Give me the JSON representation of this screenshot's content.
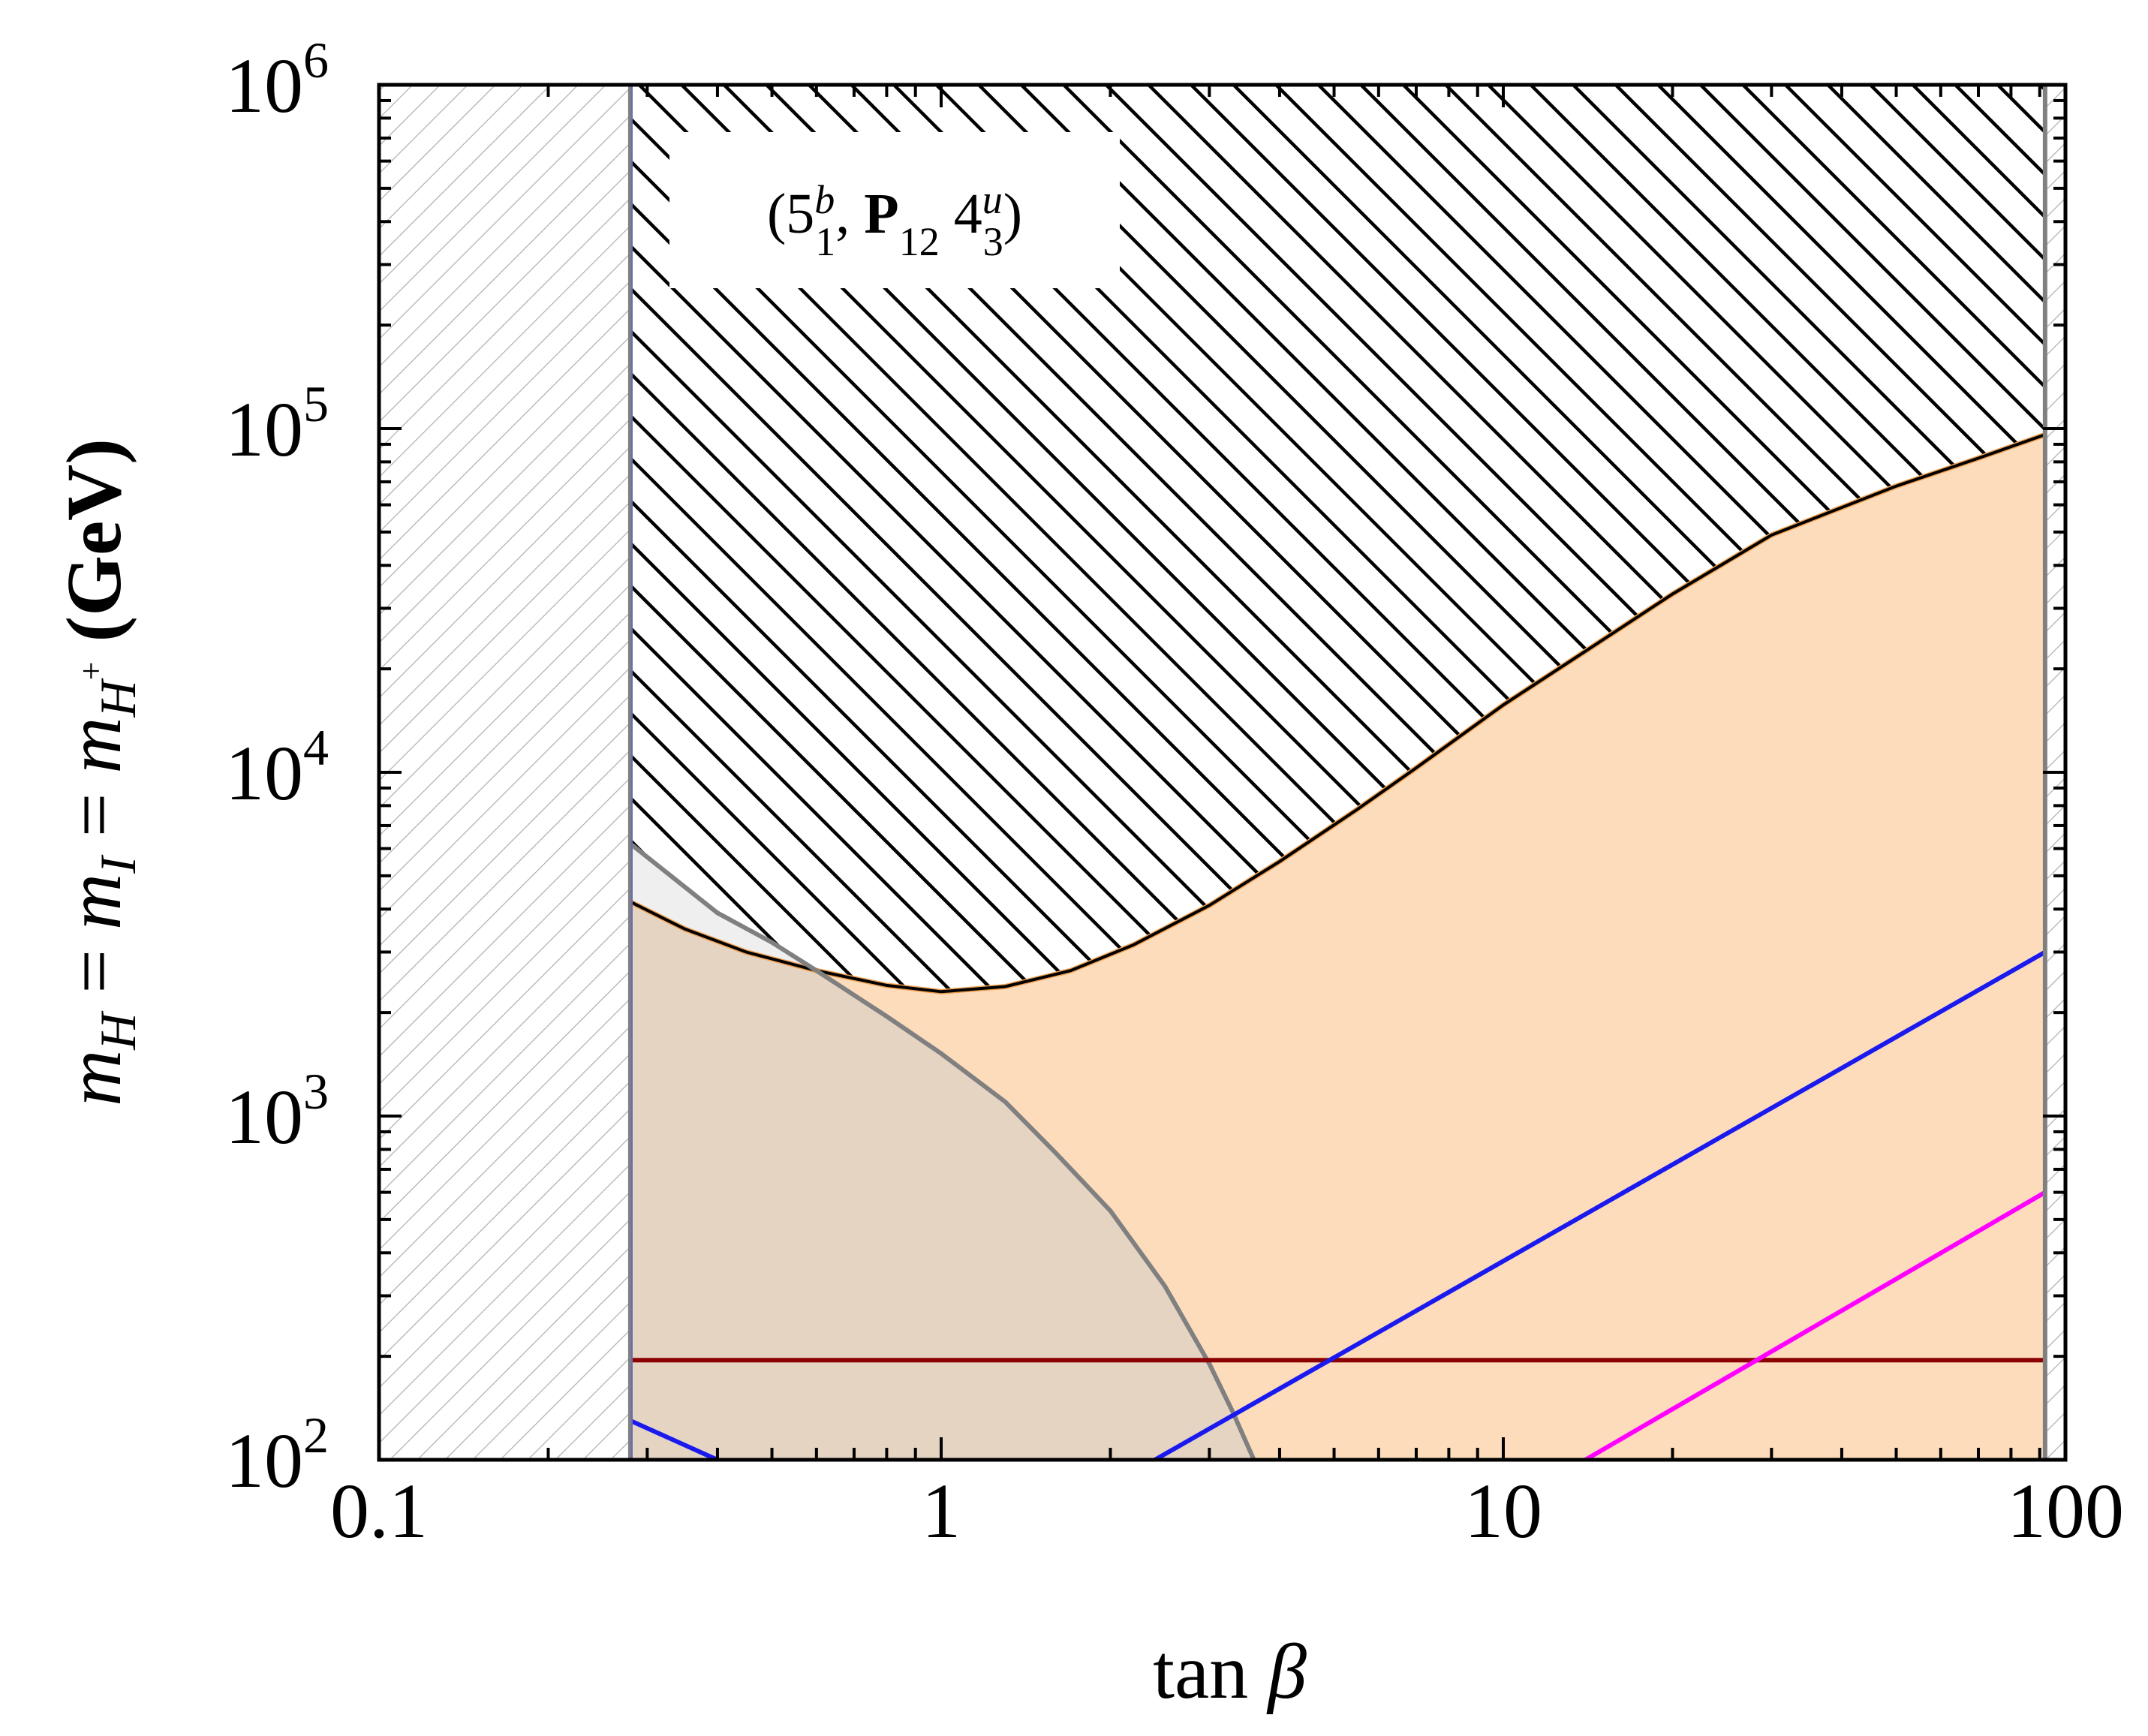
{
  "chart_data": {
    "type": "line",
    "title": "",
    "xlabel": {
      "main": "tan ",
      "symbol": "β"
    },
    "ylabel": {
      "m1": "m",
      "s1": "H",
      "eq1": " = ",
      "m2": "m",
      "s2": "I",
      "eq2": " = ",
      "m3": "m",
      "s3": "H",
      "s3sup": "+",
      "unit": " (GeV)"
    },
    "x_scale": "log",
    "y_scale": "log",
    "xlim": [
      0.1,
      100
    ],
    "ylim": [
      100,
      1000000
    ],
    "x_ticks": [
      {
        "value": 0.1,
        "label": "0.1"
      },
      {
        "value": 1,
        "label": "1"
      },
      {
        "value": 10,
        "label": "10"
      },
      {
        "value": 100,
        "label": "100"
      }
    ],
    "y_ticks": [
      {
        "value": 100,
        "base": "10",
        "exp": "2"
      },
      {
        "value": 1000,
        "base": "10",
        "exp": "3"
      },
      {
        "value": 10000,
        "base": "10",
        "exp": "4"
      },
      {
        "value": 100000,
        "base": "10",
        "exp": "5"
      },
      {
        "value": 1000000,
        "base": "10",
        "exp": "6"
      }
    ],
    "annotation": {
      "open": "(5",
      "b_sup": "b",
      "b_sub": "1",
      "comma": ", ",
      "P": "P",
      "P_sub": "12",
      "four": " 4",
      "u_sup": "u",
      "u_sub": "3",
      "close": ")"
    },
    "excluded_tanb_low": 0.28,
    "excluded_tanb_high": 92,
    "colors": {
      "orange_fill": "#fddcbc",
      "orange_line": "#f0a050",
      "gray_fill": "#e6d4c2",
      "gray_line": "#808080",
      "light_gray_fill": "#efefef",
      "blue": "#1a1aee",
      "magenta": "#ff00ff",
      "darkred": "#8b0000",
      "hatch": "#000000",
      "light_hatch": "#b0b0b0"
    },
    "series": [
      {
        "role": "hatched-upper-boundary",
        "color": "#000000",
        "x": [
          0.28,
          0.35,
          0.45,
          0.6,
          0.8,
          1.0,
          1.3,
          1.7,
          2.2,
          3,
          4,
          5.5,
          7,
          10,
          14,
          20,
          30,
          50,
          70,
          92
        ],
        "y": [
          4200,
          3500,
          3000,
          2650,
          2400,
          2300,
          2380,
          2650,
          3150,
          4100,
          5500,
          7800,
          10300,
          15700,
          22500,
          33000,
          49000,
          68000,
          82000,
          96000
        ]
      },
      {
        "role": "gray-boundary",
        "color": "#808080",
        "x": [
          0.28,
          0.4,
          0.5,
          0.6,
          0.8,
          1.0,
          1.3,
          1.6,
          2.0,
          2.5,
          3.0,
          3.3,
          3.6
        ],
        "y": [
          6200,
          3900,
          3200,
          2650,
          1950,
          1520,
          1100,
          780,
          530,
          320,
          190,
          138,
          100
        ]
      },
      {
        "role": "blue-line",
        "color": "#1a1aee",
        "segments": [
          {
            "x": [
              0.28,
              0.4
            ],
            "y": [
              130,
              100
            ]
          },
          {
            "x": [
              2.4,
              92
            ],
            "y": [
              100,
              3000
            ]
          }
        ]
      },
      {
        "role": "magenta-line",
        "color": "#ff00ff",
        "x": [
          14,
          92
        ],
        "y": [
          100,
          600
        ]
      },
      {
        "role": "darkred-line",
        "color": "#8b0000",
        "x": [
          0.28,
          92
        ],
        "y": [
          195,
          195
        ]
      }
    ]
  }
}
